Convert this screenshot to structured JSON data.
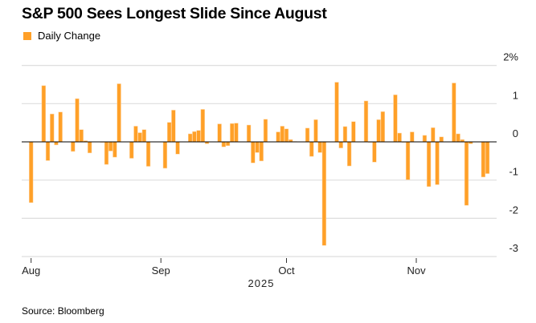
{
  "title": "S&P 500 Sees Longest Slide Since August",
  "legend": {
    "label": "Daily Change",
    "color": "#ffa028"
  },
  "source": "Source: Bloomberg",
  "chart_data": {
    "type": "bar",
    "title": "S&P 500 Sees Longest Slide Since August",
    "xlabel": "2025",
    "ylabel": "",
    "ylim": [
      -3,
      2
    ],
    "yticks": [
      {
        "value": 2,
        "label": "2%"
      },
      {
        "value": 1,
        "label": "1"
      },
      {
        "value": 0,
        "label": "0"
      },
      {
        "value": -1,
        "label": "-1"
      },
      {
        "value": -2,
        "label": "-2"
      },
      {
        "value": -3,
        "label": "-3"
      }
    ],
    "xticks": [
      {
        "date": "2025-08-01",
        "label": "Aug"
      },
      {
        "date": "2025-09-01",
        "label": "Sep"
      },
      {
        "date": "2025-10-01",
        "label": "Oct"
      },
      {
        "date": "2025-11-01",
        "label": "Nov"
      }
    ],
    "grid": true,
    "legend_position": "top-left",
    "series": [
      {
        "name": "Daily Change",
        "color": "#ffa028",
        "points": [
          [
            "2025-08-01",
            -1.59
          ],
          [
            "2025-08-04",
            1.47
          ],
          [
            "2025-08-05",
            -0.49
          ],
          [
            "2025-08-06",
            0.73
          ],
          [
            "2025-08-07",
            -0.08
          ],
          [
            "2025-08-08",
            0.78
          ],
          [
            "2025-08-11",
            -0.25
          ],
          [
            "2025-08-12",
            1.13
          ],
          [
            "2025-08-13",
            0.32
          ],
          [
            "2025-08-14",
            0.03
          ],
          [
            "2025-08-15",
            -0.29
          ],
          [
            "2025-08-18",
            -0.01
          ],
          [
            "2025-08-19",
            -0.59
          ],
          [
            "2025-08-20",
            -0.24
          ],
          [
            "2025-08-21",
            -0.4
          ],
          [
            "2025-08-22",
            1.52
          ],
          [
            "2025-08-25",
            -0.43
          ],
          [
            "2025-08-26",
            0.41
          ],
          [
            "2025-08-27",
            0.24
          ],
          [
            "2025-08-28",
            0.32
          ],
          [
            "2025-08-29",
            -0.64
          ],
          [
            "2025-09-02",
            -0.69
          ],
          [
            "2025-09-03",
            0.51
          ],
          [
            "2025-09-04",
            0.83
          ],
          [
            "2025-09-05",
            -0.32
          ],
          [
            "2025-09-08",
            0.21
          ],
          [
            "2025-09-09",
            0.27
          ],
          [
            "2025-09-10",
            0.3
          ],
          [
            "2025-09-11",
            0.85
          ],
          [
            "2025-09-12",
            -0.05
          ],
          [
            "2025-09-15",
            0.47
          ],
          [
            "2025-09-16",
            -0.13
          ],
          [
            "2025-09-17",
            -0.1
          ],
          [
            "2025-09-18",
            0.48
          ],
          [
            "2025-09-19",
            0.49
          ],
          [
            "2025-09-22",
            0.44
          ],
          [
            "2025-09-23",
            -0.55
          ],
          [
            "2025-09-24",
            -0.28
          ],
          [
            "2025-09-25",
            -0.5
          ],
          [
            "2025-09-26",
            0.59
          ],
          [
            "2025-09-29",
            0.26
          ],
          [
            "2025-09-30",
            0.41
          ],
          [
            "2025-10-01",
            0.34
          ],
          [
            "2025-10-02",
            0.06
          ],
          [
            "2025-10-03",
            0.01
          ],
          [
            "2025-10-06",
            0.36
          ],
          [
            "2025-10-07",
            -0.38
          ],
          [
            "2025-10-08",
            0.58
          ],
          [
            "2025-10-09",
            -0.28
          ],
          [
            "2025-10-10",
            -2.71
          ],
          [
            "2025-10-13",
            1.56
          ],
          [
            "2025-10-14",
            -0.16
          ],
          [
            "2025-10-15",
            0.4
          ],
          [
            "2025-10-16",
            -0.63
          ],
          [
            "2025-10-17",
            0.53
          ],
          [
            "2025-10-20",
            1.07
          ],
          [
            "2025-10-21",
            0.0
          ],
          [
            "2025-10-22",
            -0.53
          ],
          [
            "2025-10-23",
            0.58
          ],
          [
            "2025-10-24",
            0.79
          ],
          [
            "2025-10-27",
            1.23
          ],
          [
            "2025-10-28",
            0.23
          ],
          [
            "2025-10-29",
            0.0
          ],
          [
            "2025-10-30",
            -0.99
          ],
          [
            "2025-10-31",
            0.26
          ],
          [
            "2025-11-03",
            0.17
          ],
          [
            "2025-11-04",
            -1.17
          ],
          [
            "2025-11-05",
            0.37
          ],
          [
            "2025-11-06",
            -1.12
          ],
          [
            "2025-11-07",
            0.13
          ],
          [
            "2025-11-10",
            1.54
          ],
          [
            "2025-11-11",
            0.21
          ],
          [
            "2025-11-12",
            0.06
          ],
          [
            "2025-11-13",
            -1.66
          ],
          [
            "2025-11-14",
            -0.05
          ],
          [
            "2025-11-17",
            -0.92
          ],
          [
            "2025-11-18",
            -0.83
          ]
        ]
      }
    ]
  }
}
